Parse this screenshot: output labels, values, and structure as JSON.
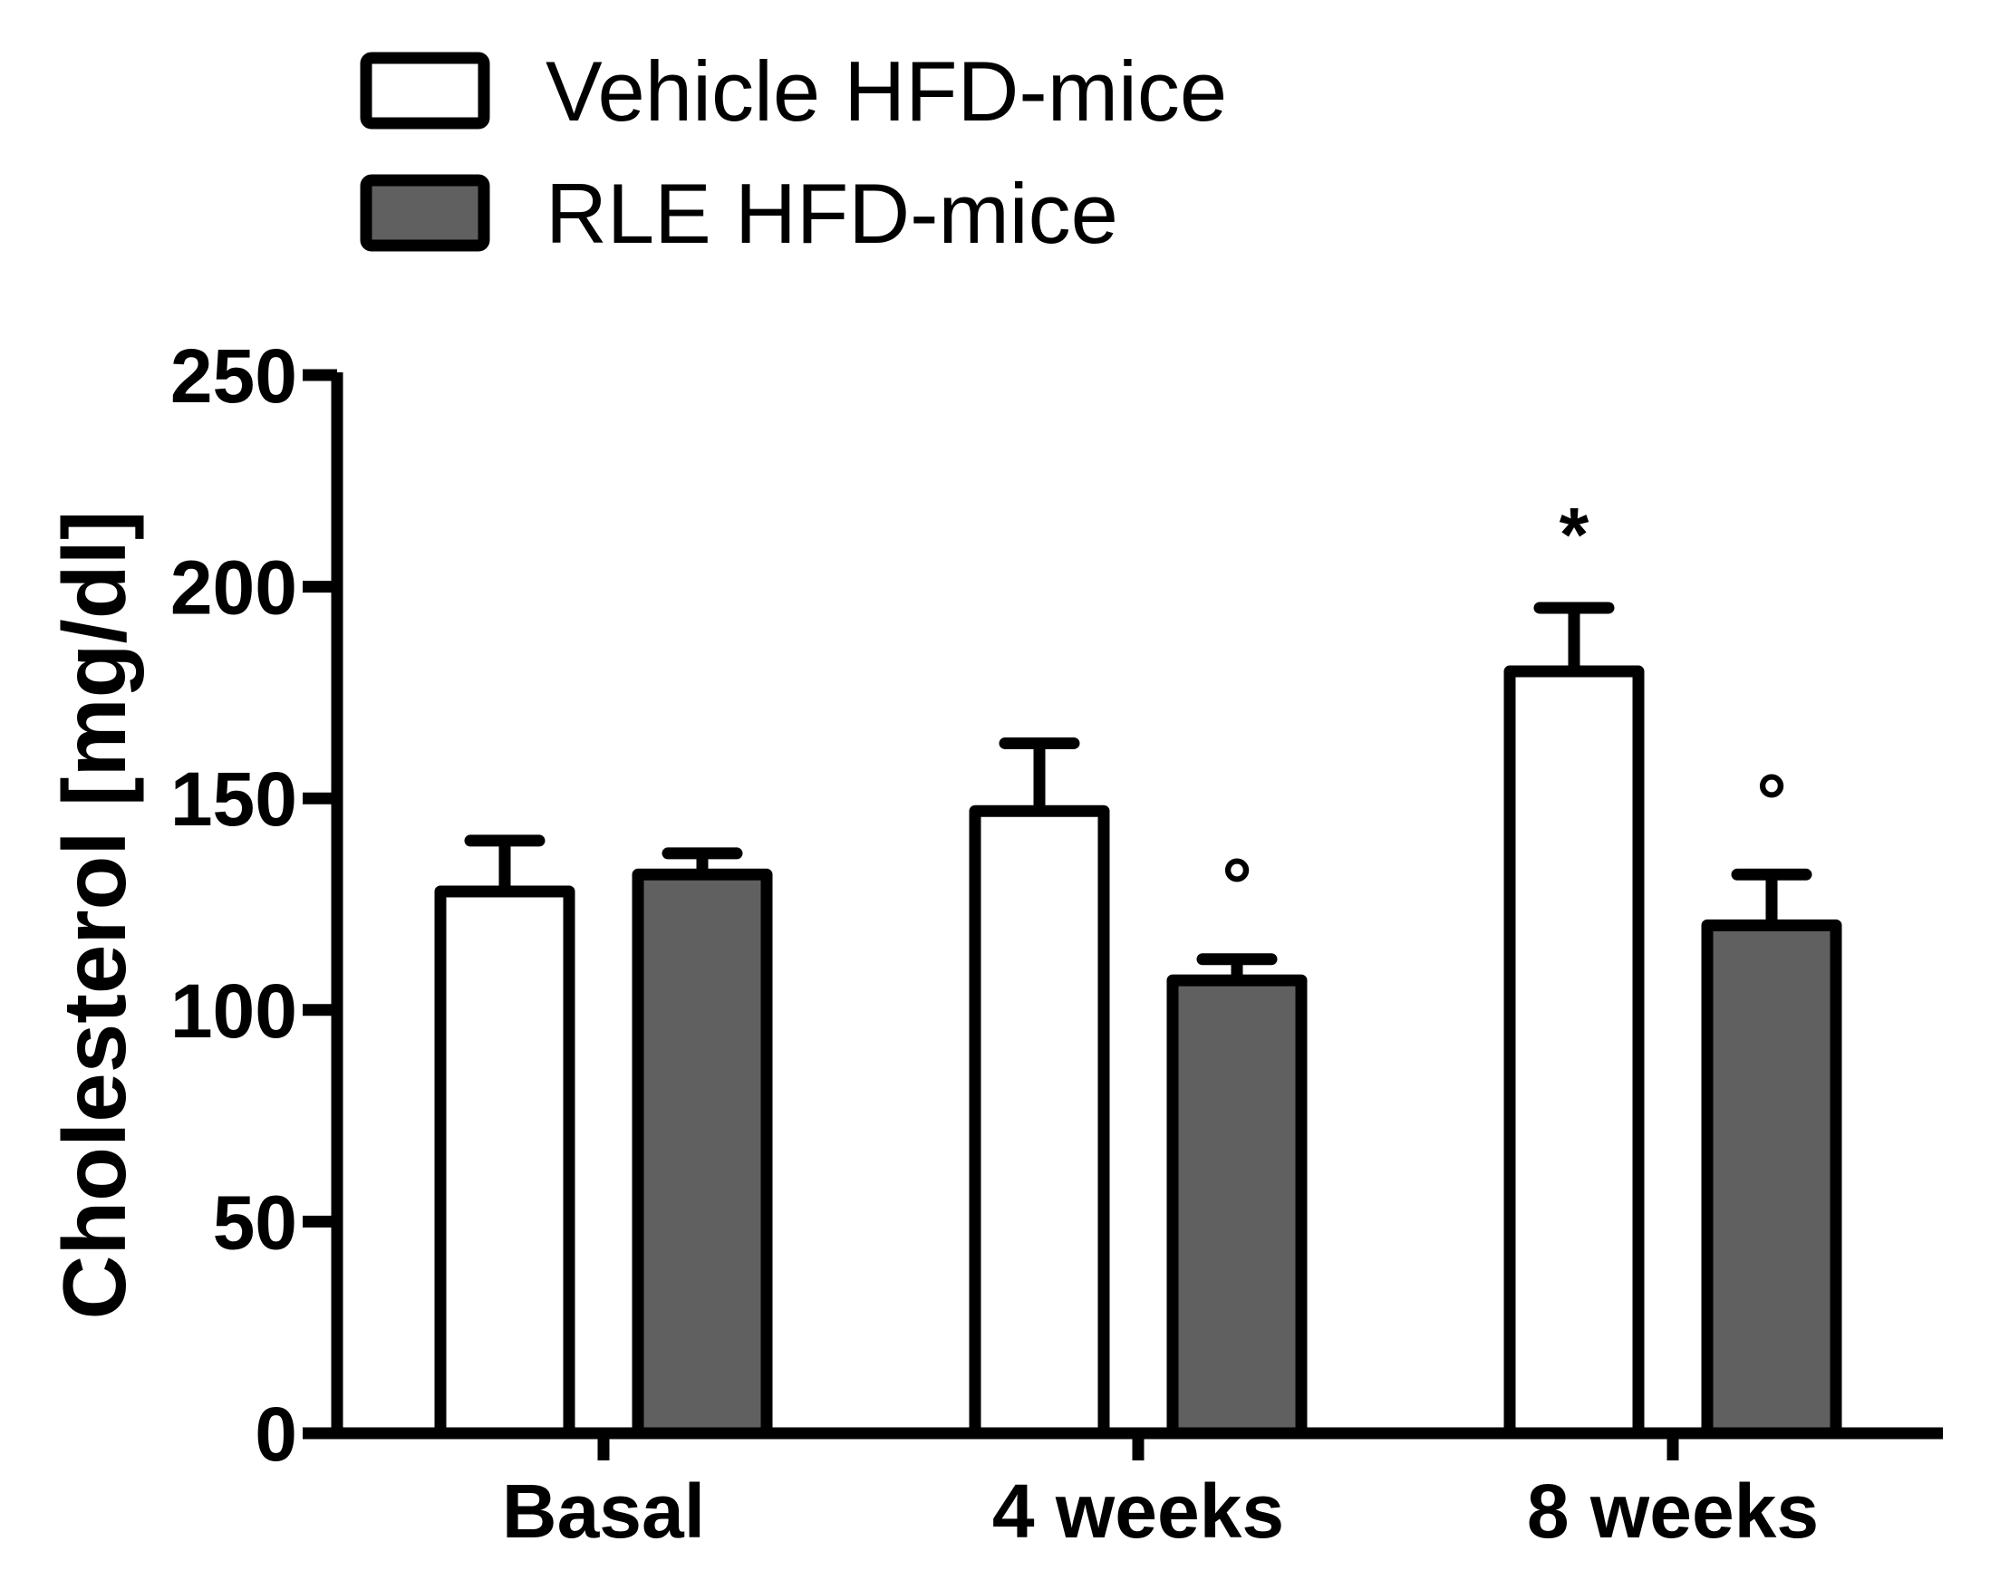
{
  "chart_data": {
    "type": "bar",
    "title": "",
    "xlabel": "",
    "ylabel": "Cholesterol [mg/dl]",
    "ylim": [
      0,
      250
    ],
    "yticks": [
      0,
      50,
      100,
      150,
      200,
      250
    ],
    "categories": [
      "Basal",
      "4 weeks",
      "8 weeks"
    ],
    "series": [
      {
        "name": "Vehicle HFD-mice",
        "fill": "#ffffff",
        "values": [
          128,
          147,
          180
        ],
        "errors": [
          12,
          16,
          15
        ],
        "annotations": [
          "",
          "",
          "*"
        ]
      },
      {
        "name": "RLE HFD-mice",
        "fill": "#606060",
        "values": [
          132,
          107,
          120
        ],
        "errors": [
          5,
          5,
          12
        ],
        "annotations": [
          "",
          "°",
          "°"
        ]
      }
    ],
    "legend_position": "top-left",
    "grid": false
  }
}
